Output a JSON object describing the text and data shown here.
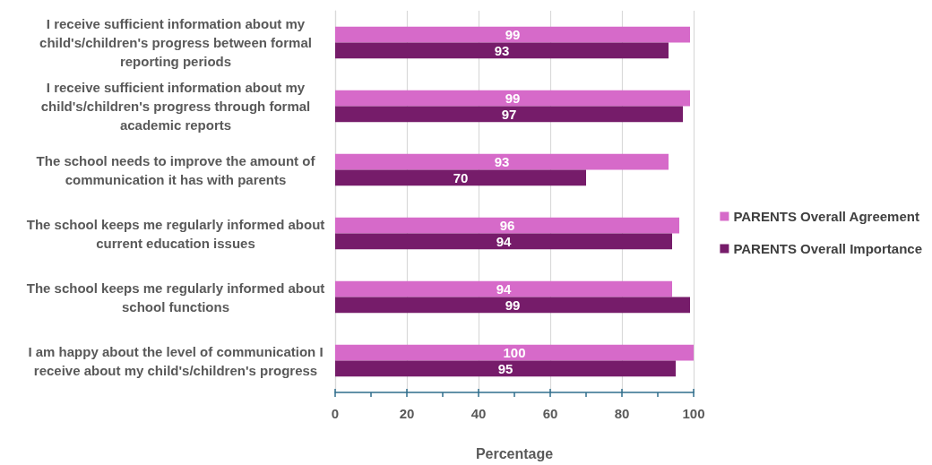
{
  "chart_data": {
    "type": "bar",
    "orientation": "horizontal",
    "xlabel": "Percentage",
    "categories": [
      "I receive sufficient information about my child's/children's progress between formal reporting periods",
      "I receive sufficient information about my child's/children's progress through formal academic reports",
      "The school needs to improve the amount of communication it has with parents",
      "The school keeps me regularly informed about current education issues",
      "The school keeps me regularly informed about school functions",
      "I am happy about the level of communication I receive about my child's/children's progress"
    ],
    "series": [
      {
        "name": "PARENTS Overall Agreement",
        "color": "#d66ac9",
        "values": [
          99,
          99,
          93,
          96,
          94,
          100
        ]
      },
      {
        "name": "PARENTS Overall Importance",
        "color": "#761c6a",
        "values": [
          93,
          97,
          70,
          94,
          99,
          95
        ]
      }
    ],
    "xlim": [
      0,
      100
    ],
    "xticks": [
      0,
      {
        "value": 10,
        "label": null
      },
      20,
      {
        "value": 30,
        "label": null
      },
      40,
      {
        "value": 50,
        "label": null
      },
      60,
      {
        "value": 70,
        "label": null
      },
      80,
      {
        "value": 90,
        "label": null
      },
      100
    ],
    "grid": "x",
    "legend": "right",
    "data_labels": true
  }
}
